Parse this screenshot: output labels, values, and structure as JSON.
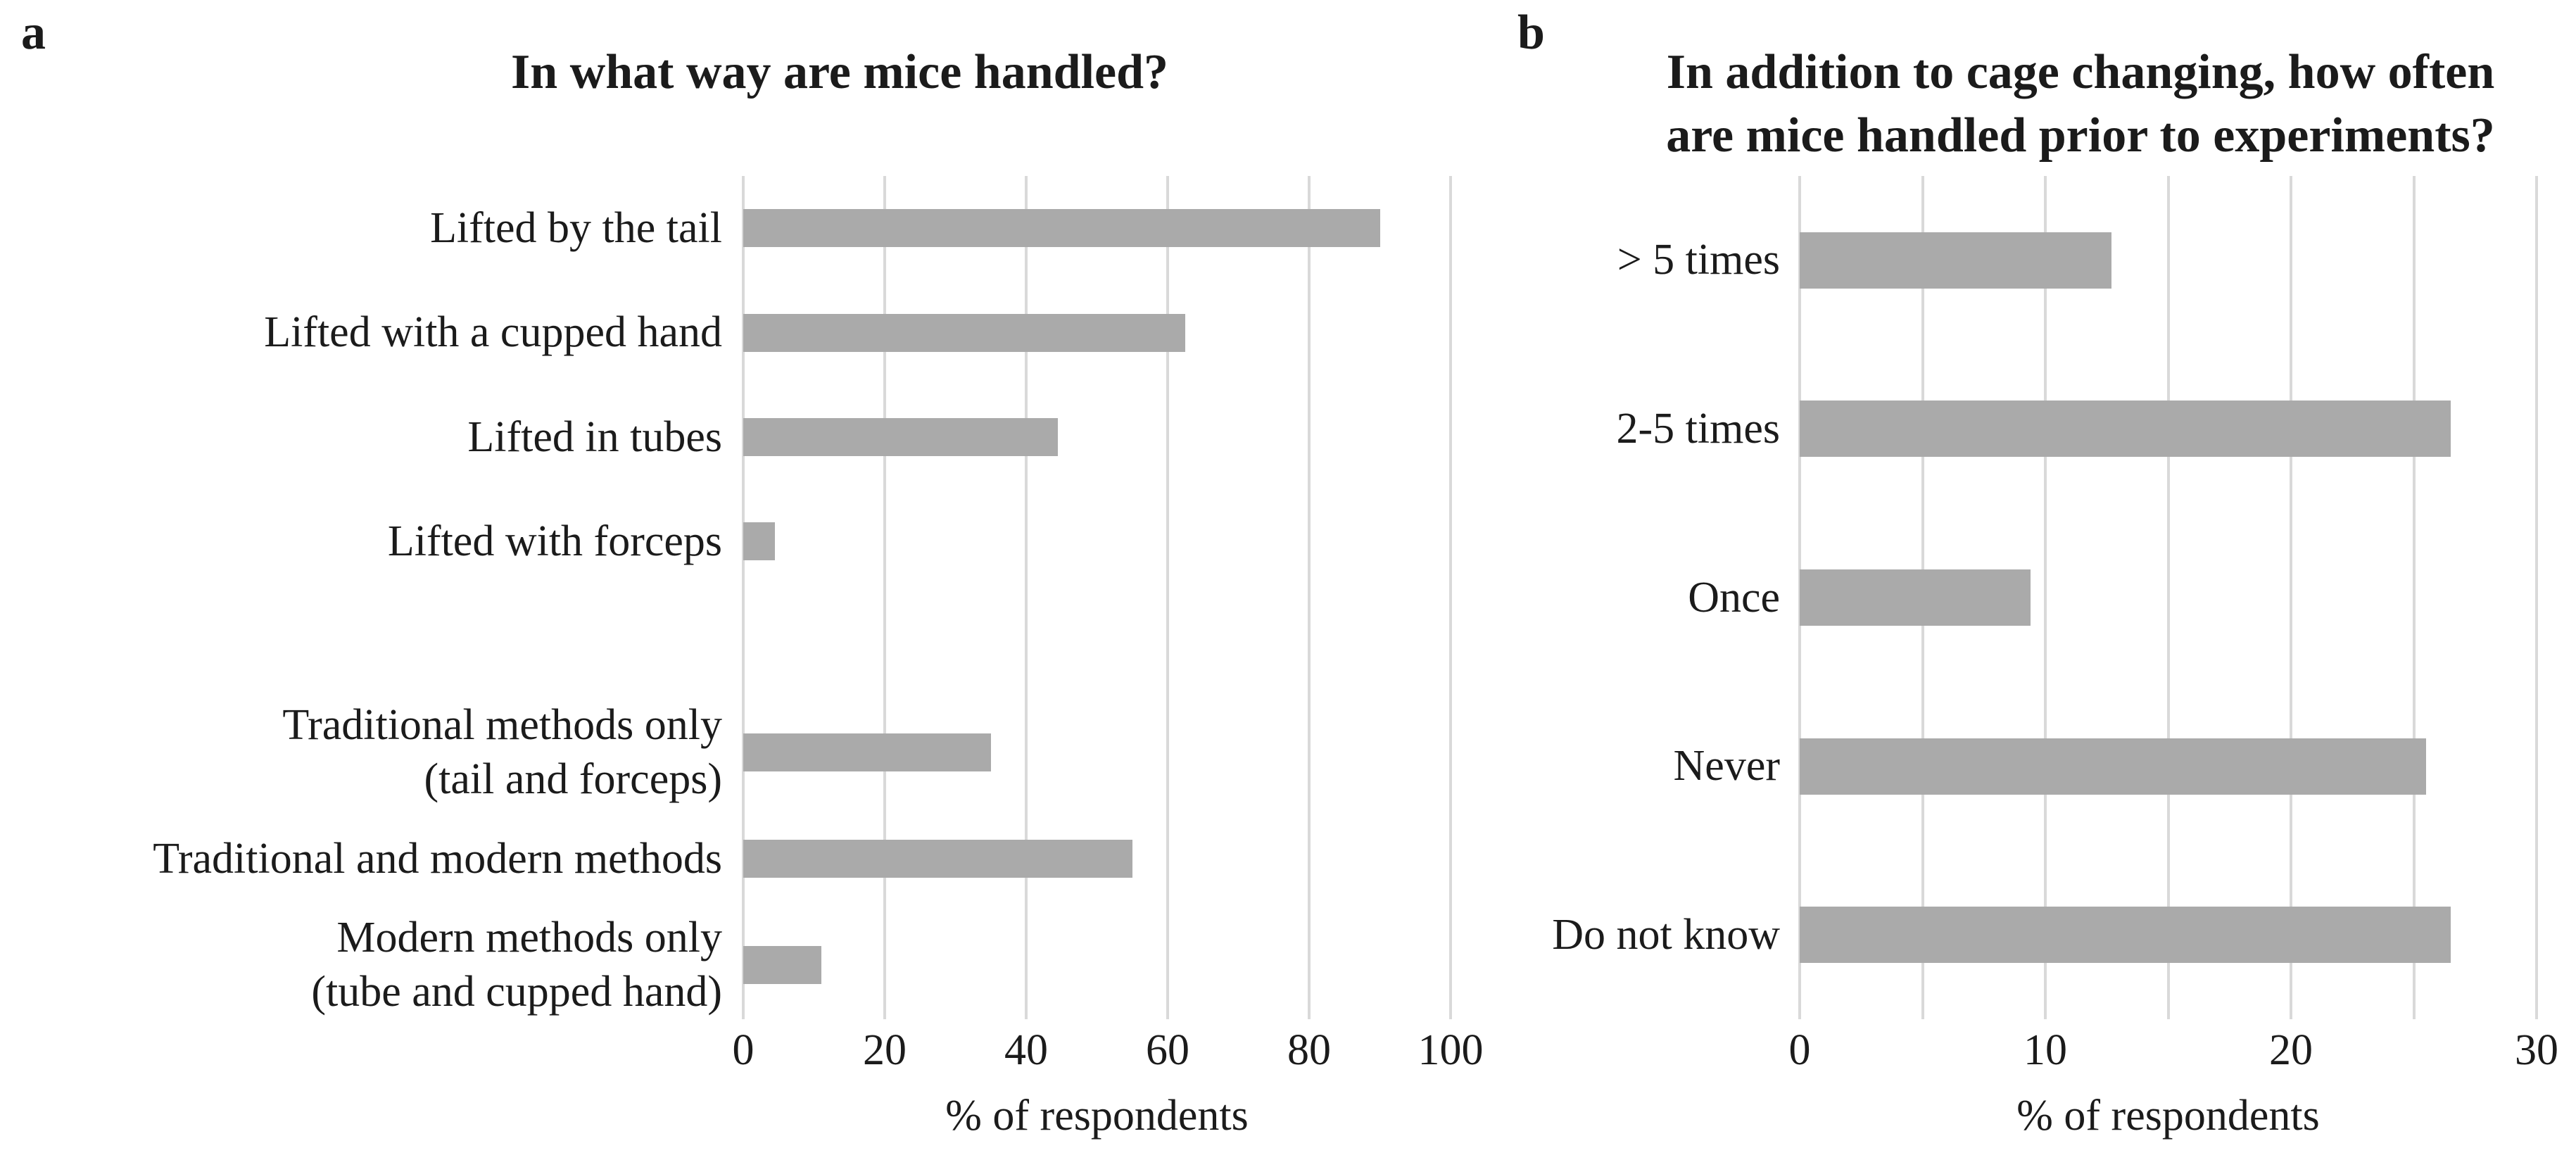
{
  "page": {
    "background": "#ffffff",
    "text_color": "#1b1b1b"
  },
  "chart_data": [
    {
      "type": "bar",
      "orientation": "horizontal",
      "panel_label": "a",
      "title_lines": [
        "In what way are mice handled?"
      ],
      "xlabel": "% of respondents",
      "categories": [
        "Lifted by the tail",
        "Lifted with a cupped hand",
        "Lifted in tubes",
        "Lifted with forceps",
        "",
        "Traditional methods only\n(tail and forceps)",
        "Traditional and modern methods",
        "Modern methods only\n(tube and cupped hand)"
      ],
      "values": [
        90,
        62.5,
        44.5,
        4.5,
        null,
        35,
        55,
        11
      ],
      "xlim": [
        0,
        100
      ],
      "tick_values": [
        0,
        20,
        40,
        60,
        80,
        100
      ],
      "tick_labels": [
        "0",
        "20",
        "40",
        "60",
        "80",
        "100"
      ],
      "gridline_values": [
        0,
        20,
        40,
        60,
        80,
        100
      ],
      "grid": "vertical-lines",
      "legend": "none",
      "bar_color": "#aaaaaa",
      "gridline_color": "#d9d9d9"
    },
    {
      "type": "bar",
      "orientation": "horizontal",
      "panel_label": "b",
      "title_lines": [
        "In addition to cage changing, how often",
        "are mice handled prior to experiments?"
      ],
      "xlabel": "% of respondents",
      "categories": [
        "> 5 times",
        "2-5 times",
        "Once",
        "Never",
        "Do not know"
      ],
      "values": [
        12.7,
        26.5,
        9.4,
        25.5,
        26.5
      ],
      "xlim": [
        0,
        30
      ],
      "tick_values": [
        0,
        10,
        20,
        30
      ],
      "tick_labels": [
        "0",
        "10",
        "20",
        "30"
      ],
      "gridline_values": [
        0,
        5,
        10,
        15,
        20,
        25,
        30
      ],
      "grid": "vertical-lines",
      "legend": "none",
      "bar_color": "#aaaaaa",
      "gridline_color": "#d9d9d9"
    }
  ]
}
